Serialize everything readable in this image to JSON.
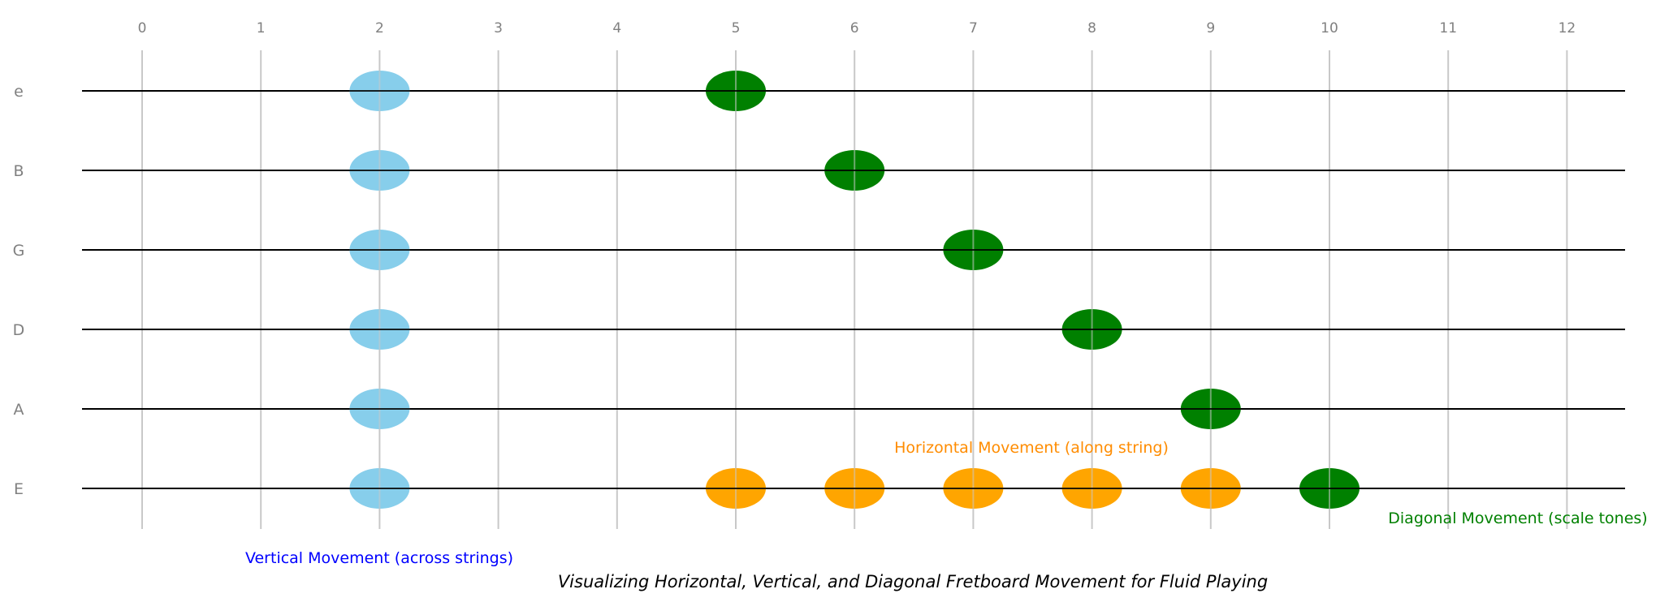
{
  "chart_data": {
    "type": "scatter",
    "title": "Visualizing Horizontal, Vertical, and Diagonal Fretboard Movement for Fluid Playing",
    "xlabel": "",
    "ylabel": "",
    "frets": [
      "0",
      "1",
      "2",
      "3",
      "4",
      "5",
      "6",
      "7",
      "8",
      "9",
      "10",
      "11",
      "12"
    ],
    "strings": [
      "e",
      "B",
      "G",
      "D",
      "A",
      "E"
    ],
    "xlim": [
      -0.5,
      12.5
    ],
    "grid": true,
    "series": [
      {
        "label": "Vertical Movement (across strings)",
        "color": "#87CEEB",
        "label_color": "#0000FF",
        "points": [
          {
            "string": "e",
            "fret": 2
          },
          {
            "string": "B",
            "fret": 2
          },
          {
            "string": "G",
            "fret": 2
          },
          {
            "string": "D",
            "fret": 2
          },
          {
            "string": "A",
            "fret": 2
          },
          {
            "string": "E",
            "fret": 2
          }
        ]
      },
      {
        "label": "Horizontal Movement (along string)",
        "color": "#FFA500",
        "label_color": "#FF8C00",
        "points": [
          {
            "string": "E",
            "fret": 5
          },
          {
            "string": "E",
            "fret": 6
          },
          {
            "string": "E",
            "fret": 7
          },
          {
            "string": "E",
            "fret": 8
          },
          {
            "string": "E",
            "fret": 9
          }
        ]
      },
      {
        "label": "Diagonal Movement (scale tones)",
        "color": "#008000",
        "label_color": "#008000",
        "points": [
          {
            "string": "e",
            "fret": 5
          },
          {
            "string": "B",
            "fret": 6
          },
          {
            "string": "G",
            "fret": 7
          },
          {
            "string": "D",
            "fret": 8
          },
          {
            "string": "A",
            "fret": 9
          },
          {
            "string": "E",
            "fret": 10
          }
        ]
      }
    ],
    "colors": {
      "string_line": "#000000",
      "fret_line": "#C8C8C8",
      "tick_text": "#808080"
    }
  }
}
